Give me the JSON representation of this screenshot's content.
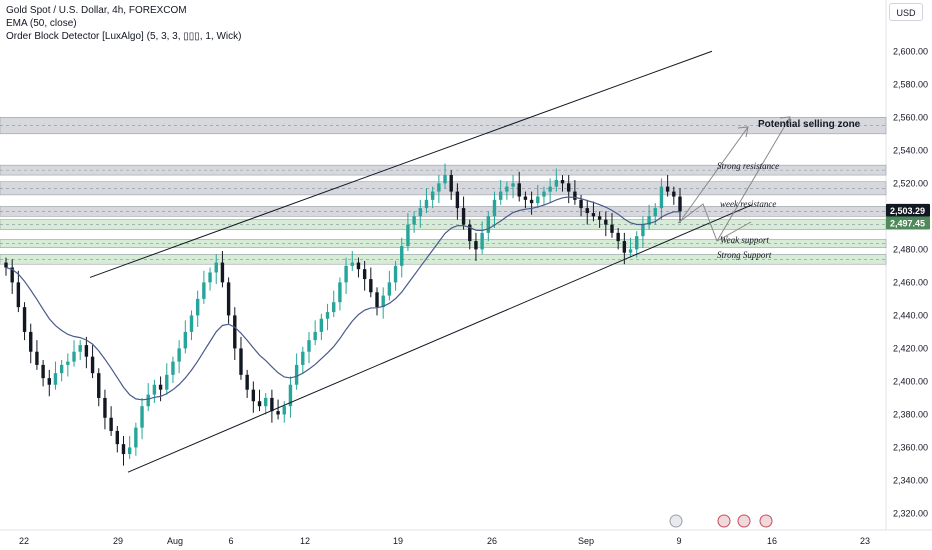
{
  "legend": {
    "symbol": "Gold Spot / U.S. Dollar, 4h, FOREXCOM",
    "ema": "EMA (50, close)",
    "ob": "Order Block Detector [LuxAlgo] (5, 3, 3, ▯▯▯, 1, Wick)"
  },
  "currency": "USD",
  "colors": {
    "bull": "#26a69a",
    "bear": "#131722",
    "ema": "#4a5a8c",
    "resistance_zone": "#c9cbd1",
    "support_zone": "#c8e6c9",
    "badge_current": "#131722",
    "badge_ema": "#4f8a5b"
  },
  "chart_data": {
    "type": "candlestick",
    "timeframe": "4h",
    "ylim": [
      2310,
      2625
    ],
    "y_ticks": [
      "2,600.00",
      "2,580.00",
      "2,560.00",
      "2,540.00",
      "2,520.00",
      "2,500.00",
      "2,480.00",
      "2,460.00",
      "2,440.00",
      "2,420.00",
      "2,400.00",
      "2,380.00",
      "2,360.00",
      "2,340.00",
      "2,320.00"
    ],
    "x_ticks": [
      "22",
      "29",
      "Aug",
      "6",
      "12",
      "19",
      "26",
      "Sep",
      "9",
      "16",
      "23"
    ],
    "closes": [
      2469,
      2460,
      2445,
      2430,
      2418,
      2410,
      2402,
      2398,
      2405,
      2410,
      2412,
      2418,
      2422,
      2415,
      2405,
      2390,
      2378,
      2370,
      2362,
      2356,
      2360,
      2372,
      2385,
      2392,
      2398,
      2395,
      2404,
      2412,
      2420,
      2430,
      2440,
      2450,
      2460,
      2466,
      2472,
      2460,
      2440,
      2420,
      2404,
      2395,
      2388,
      2385,
      2390,
      2382,
      2380,
      2385,
      2398,
      2410,
      2418,
      2425,
      2430,
      2438,
      2442,
      2448,
      2460,
      2470,
      2472,
      2468,
      2462,
      2454,
      2445,
      2452,
      2460,
      2470,
      2482,
      2495,
      2500,
      2505,
      2510,
      2515,
      2520,
      2525,
      2515,
      2505,
      2495,
      2485,
      2480,
      2490,
      2500,
      2510,
      2515,
      2518,
      2520,
      2512,
      2510,
      2508,
      2512,
      2515,
      2518,
      2522,
      2520,
      2515,
      2510,
      2505,
      2502,
      2500,
      2498,
      2495,
      2490,
      2485,
      2478,
      2480,
      2488,
      2495,
      2500,
      2505,
      2518,
      2515,
      2512,
      2503
    ],
    "ema": {
      "name": "EMA (50, close)"
    },
    "current_price": "2,503.29",
    "ema_price": "2,497.45",
    "zones": [
      {
        "kind": "resistance",
        "from": 2550,
        "to": 2560
      },
      {
        "kind": "resistance",
        "from": 2525,
        "to": 2531
      },
      {
        "kind": "resistance",
        "from": 2513,
        "to": 2521
      },
      {
        "kind": "resistance",
        "from": 2500,
        "to": 2506
      },
      {
        "kind": "support",
        "from": 2492,
        "to": 2498
      },
      {
        "kind": "support",
        "from": 2481,
        "to": 2486
      },
      {
        "kind": "support",
        "from": 2471,
        "to": 2477
      }
    ],
    "annotations": {
      "potential": "Potential selling zone",
      "strong_res": "Strong resistance",
      "weak_res": "week resistance",
      "weak_sup": "Weak support",
      "strong_sup": "Strong Support"
    },
    "channel": {
      "upper": [
        [
          0,
          2463
        ],
        [
          1,
          2600
        ]
      ],
      "lower": [
        [
          0,
          2345
        ],
        [
          1,
          2507
        ]
      ]
    }
  }
}
